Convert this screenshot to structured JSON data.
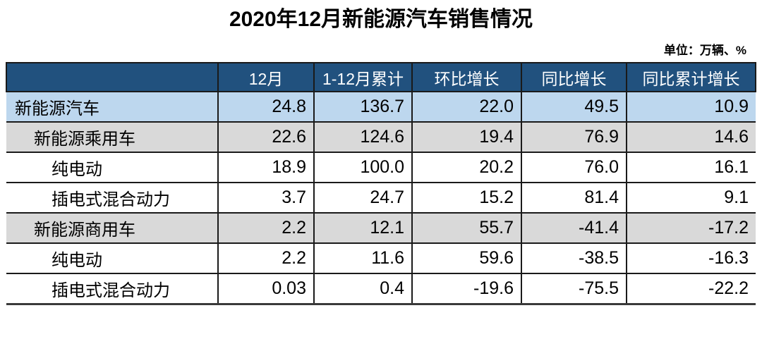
{
  "chart_data": {
    "type": "table",
    "title": "2020年12月新能源汽车销售情况",
    "unit_note": "单位：万辆、%",
    "columns": [
      "",
      "12月",
      "1-12月累计",
      "环比增长",
      "同比增长",
      "同比累计增长"
    ],
    "rows": [
      {
        "label": "新能源汽车",
        "level": 1,
        "row_style": "highlight",
        "values": [
          "24.8",
          "136.7",
          "22.0",
          "49.5",
          "10.9"
        ]
      },
      {
        "label": "新能源乘用车",
        "level": 2,
        "row_style": "group",
        "values": [
          "22.6",
          "124.6",
          "19.4",
          "76.9",
          "14.6"
        ]
      },
      {
        "label": "纯电动",
        "level": 3,
        "row_style": "plain",
        "values": [
          "18.9",
          "100.0",
          "20.2",
          "76.0",
          "16.1"
        ]
      },
      {
        "label": "插电式混合动力",
        "level": 3,
        "row_style": "plain",
        "values": [
          "3.7",
          "24.7",
          "15.2",
          "81.4",
          "9.1"
        ]
      },
      {
        "label": "新能源商用车",
        "level": 2,
        "row_style": "group",
        "values": [
          "2.2",
          "12.1",
          "55.7",
          "-41.4",
          "-17.2"
        ]
      },
      {
        "label": "纯电动",
        "level": 3,
        "row_style": "plain",
        "values": [
          "2.2",
          "11.6",
          "59.6",
          "-38.5",
          "-16.3"
        ]
      },
      {
        "label": "插电式混合动力",
        "level": 3,
        "row_style": "plain",
        "values": [
          "0.03",
          "0.4",
          "-19.6",
          "-75.5",
          "-22.2"
        ]
      }
    ],
    "layout": {
      "grid": "on",
      "value_alignment": "right",
      "header_alignment": "center"
    }
  },
  "colors": {
    "header_bg": "#21517E",
    "header_text": "#FFFFFF",
    "highlight_row_bg": "#BDD7EE",
    "group_row_bg": "#D9D9D9",
    "body_row_bg": "#FFFFFF",
    "grid_line": "#1A1A1A",
    "text": "#000000"
  }
}
